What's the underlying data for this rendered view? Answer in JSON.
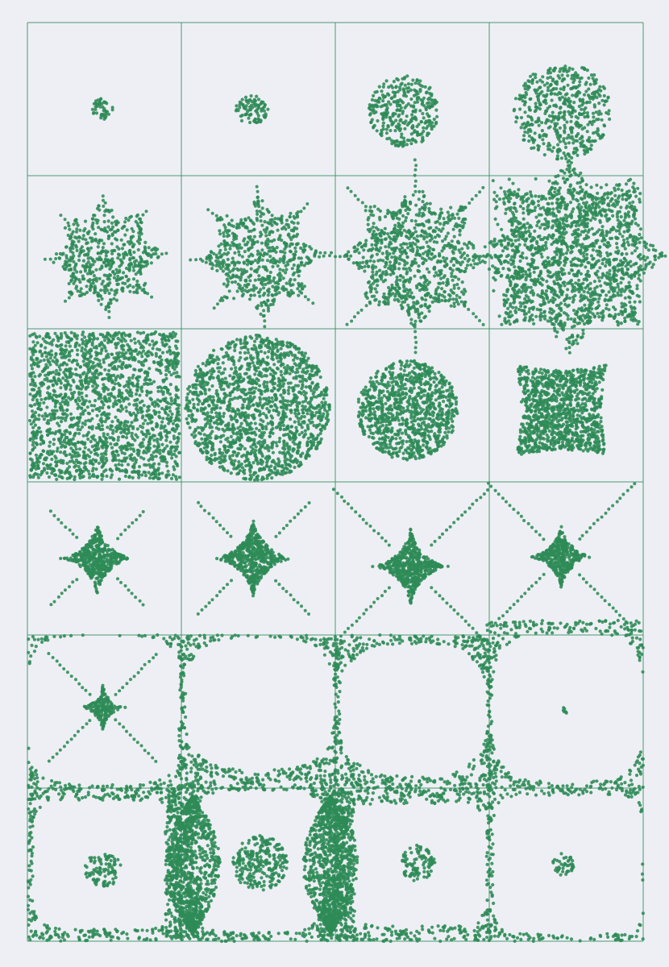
{
  "artwork": {
    "kind": "pen plot on paper",
    "ink_color": "#2e8b57",
    "paper_color": "#eeeff4",
    "grid": {
      "rows": 6,
      "columns": 4
    },
    "panels": [
      {
        "row": 1,
        "col": 1,
        "motif": "dot-cluster",
        "level": 0.08
      },
      {
        "row": 1,
        "col": 2,
        "motif": "dot-cluster",
        "level": 0.12
      },
      {
        "row": 1,
        "col": 3,
        "motif": "dot-cluster",
        "level": 0.25
      },
      {
        "row": 1,
        "col": 4,
        "motif": "dot-cluster",
        "level": 0.35
      },
      {
        "row": 2,
        "col": 1,
        "motif": "spiked-star",
        "level": 0.45
      },
      {
        "row": 2,
        "col": 2,
        "motif": "spiked-star",
        "level": 0.55
      },
      {
        "row": 2,
        "col": 3,
        "motif": "spiked-star",
        "level": 0.7
      },
      {
        "row": 2,
        "col": 4,
        "motif": "spiked-star-filled",
        "level": 0.95
      },
      {
        "row": 3,
        "col": 1,
        "motif": "filled-square",
        "level": 1.0
      },
      {
        "row": 3,
        "col": 2,
        "motif": "filled-disc",
        "level": 0.9
      },
      {
        "row": 3,
        "col": 3,
        "motif": "filled-disc",
        "level": 0.6
      },
      {
        "row": 3,
        "col": 4,
        "motif": "pinched-square",
        "level": 0.45
      },
      {
        "row": 4,
        "col": 1,
        "motif": "four-point-star",
        "level": 0.55
      },
      {
        "row": 4,
        "col": 2,
        "motif": "four-point-star",
        "level": 0.65
      },
      {
        "row": 4,
        "col": 3,
        "motif": "four-point-star",
        "level": 0.8
      },
      {
        "row": 4,
        "col": 4,
        "motif": "four-point-star",
        "level": 0.9
      },
      {
        "row": 5,
        "col": 1,
        "motif": "hole-with-star",
        "level": 0.9
      },
      {
        "row": 5,
        "col": 2,
        "motif": "round-hole",
        "level": 0.9
      },
      {
        "row": 5,
        "col": 3,
        "motif": "round-hole",
        "level": 0.9
      },
      {
        "row": 5,
        "col": 4,
        "motif": "round-hole-with-dot",
        "level": 0.9
      },
      {
        "row": 6,
        "col": 1,
        "motif": "frame-with-cluster",
        "level": 0.9
      },
      {
        "row": 6,
        "col": 2,
        "motif": "lens-frame-with-cluster",
        "level": 0.9
      },
      {
        "row": 6,
        "col": 3,
        "motif": "frame-with-cluster",
        "level": 0.9
      },
      {
        "row": 6,
        "col": 4,
        "motif": "frame-with-cluster",
        "level": 0.9
      }
    ]
  }
}
